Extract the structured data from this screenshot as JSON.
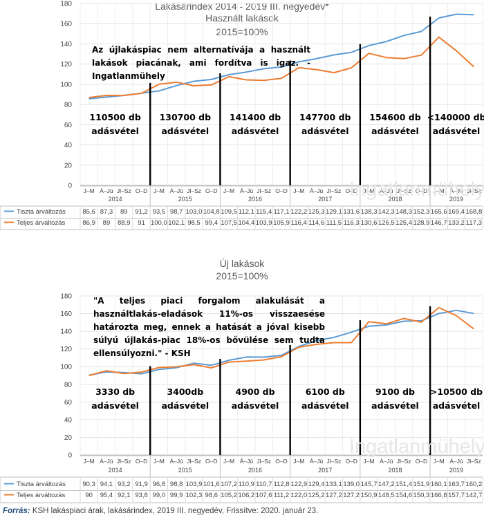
{
  "source_label": "Forrás:",
  "source_text": "KSH lakáspiaci árak, lakásárindex, 2019 III. negyedév, Frissítve: 2020. január 23.",
  "watermark": "Ingatlanmühely",
  "colors": {
    "tiszta": "#5b9bd5",
    "teljes": "#ed7d31"
  },
  "chart_data": [
    {
      "type": "line",
      "title": "Lakásárindex 2014 - 2019 III. negyedév*",
      "subtitle": "Használt lakások",
      "subtitle2": "2015=100%",
      "annotation": "Az újlakáspiac nem alternatívája a használt lakások piacának, ami fordítva is igaz. - Ingatlanmühely",
      "ylim": [
        0,
        180
      ],
      "yticks": [
        0,
        20,
        40,
        60,
        80,
        100,
        120,
        140,
        160,
        180
      ],
      "quarters": [
        "J–M",
        "Á–Jú",
        "Jl–Sz",
        "O–D",
        "J–M",
        "Á–Jú",
        "Jl–Sz",
        "O–D",
        "J–M",
        "Á–Jú",
        "Jl–Sz",
        "O–D",
        "J–M",
        "Á–Jú",
        "Jl–Sz",
        "O–D",
        "J–M",
        "Á–Jú",
        "Jl–Sz",
        "O–D",
        "J–M",
        "Á–Jú",
        "Jl–Sz"
      ],
      "years": [
        "2014",
        "2015",
        "2016",
        "2017",
        "2018",
        "2019"
      ],
      "series": [
        {
          "name": "Tiszta árváltozás",
          "values": [
            85.6,
            87.3,
            89,
            91.2,
            93.5,
            98.7,
            103,
            104.8,
            109.5,
            112.1,
            115.4,
            117.1,
            122.2,
            125.3,
            129.1,
            131.6,
            138.3,
            142.3,
            148.3,
            152.3,
            165.6,
            169.4,
            168.8
          ]
        },
        {
          "name": "Teljes árváltozás",
          "values": [
            86.9,
            89,
            88.9,
            91,
            100,
            102.1,
            98.5,
            99.4,
            107.5,
            104.4,
            103.9,
            105.9,
            116.4,
            114.6,
            111.5,
            116.3,
            130.6,
            126.5,
            125.4,
            128.9,
            146.7,
            133.2,
            117.3
          ]
        }
      ],
      "table_rows": [
        [
          "85,6",
          "87,3",
          "89",
          "91,2",
          "93,5",
          "98,7",
          "103,0",
          "104,8",
          "109,5",
          "112,1",
          "115,4",
          "117,1",
          "122,2",
          "125,3",
          "129,1",
          "131,6",
          "138,3",
          "142,3",
          "148,3",
          "152,3",
          "165,6",
          "169,4",
          "168,8"
        ],
        [
          "86,9",
          "89",
          "88,9",
          "91",
          "100,0",
          "102,1",
          "98,5",
          "99,4",
          "107,5",
          "104,4",
          "103,9",
          "105,9",
          "116,4",
          "114,6",
          "111,5",
          "116,3",
          "130,6",
          "126,5",
          "125,4",
          "128,9",
          "146,7",
          "133,2",
          "117,3"
        ]
      ],
      "boxes": [
        {
          "line1": "110500 db",
          "line2": "adásvétel"
        },
        {
          "line1": "130700 db",
          "line2": "adásvétel"
        },
        {
          "line1": "141400 db",
          "line2": "adásvétel"
        },
        {
          "line1": "147700 db",
          "line2": "adásvétel"
        },
        {
          "line1": "154600 db",
          "line2": "adásvétel"
        },
        {
          "line1": "<140000 db",
          "line2": "adásvétel"
        }
      ]
    },
    {
      "type": "line",
      "title": "Új lakások",
      "subtitle": "2015=100%",
      "annotation": "\"A teljes piaci forgalom alakulását a használtlakás-eladások 11%-os visszaesése határozta meg, ennek a hatását a jóval kisebb súlyú újlakás-piac 18%-os bővülése sem tudta ellensúlyozni.\" - KSH",
      "ylim": [
        0,
        180
      ],
      "yticks": [
        0,
        20,
        40,
        60,
        80,
        100,
        120,
        140,
        160,
        180
      ],
      "quarters": [
        "J–M",
        "Á–Jú",
        "Jl–Sz",
        "O–D",
        "J–M",
        "Á–Jú",
        "Jl–Sz",
        "O–D",
        "J–M",
        "Á–Jú",
        "Jl–Sz",
        "O–D",
        "J–M",
        "Á–Jú",
        "Jl–Sz",
        "O–D",
        "J–M",
        "Á–Jú",
        "Jl–Sz",
        "O–D",
        "J–M",
        "Á–Jú",
        "Jl–Sz"
      ],
      "years": [
        "2014",
        "2015",
        "2016",
        "2017",
        "2018",
        "2019"
      ],
      "series": [
        {
          "name": "Tiszta árváltozás",
          "values": [
            90.3,
            94.1,
            93.2,
            91.9,
            96.8,
            98.8,
            103.9,
            101.6,
            107.2,
            110.9,
            110.7,
            112.8,
            122.9,
            129.4,
            133.1,
            139.0,
            145.7,
            147.2,
            151.4,
            151.9,
            160.1,
            163.7,
            160.2
          ]
        },
        {
          "name": "Teljes árváltozás",
          "values": [
            90,
            95.4,
            92.1,
            93.8,
            99.0,
            99.9,
            102.3,
            98.6,
            105.2,
            106.2,
            107.6,
            111.2,
            122.0,
            125.2,
            127.2,
            127.2,
            150.9,
            148.5,
            154.6,
            150.3,
            166.8,
            157.7,
            142.7
          ]
        }
      ],
      "table_rows": [
        [
          "90,3",
          "94,1",
          "93,2",
          "91,9",
          "96,8",
          "98,8",
          "103,9",
          "101,6",
          "107,2",
          "110,9",
          "110,7",
          "112,8",
          "122,9",
          "129,4",
          "133,1",
          "139,0",
          "145,7",
          "147,2",
          "151,4",
          "151,9",
          "160,1",
          "163,7",
          "160,2"
        ],
        [
          "90",
          "95,4",
          "92,1",
          "93,8",
          "99,0",
          "99,9",
          "102,3",
          "98,6",
          "105,2",
          "106,2",
          "107,6",
          "111,2",
          "122,0",
          "125,2",
          "127,2",
          "127,2",
          "150,9",
          "148,5",
          "154,6",
          "150,3",
          "166,8",
          "157,7",
          "142,7"
        ]
      ],
      "boxes": [
        {
          "line1": "3330 db",
          "line2": "adásvétel"
        },
        {
          "line1": "3400db",
          "line2": "adásvétel"
        },
        {
          "line1": "4900 db",
          "line2": "adásvétel"
        },
        {
          "line1": "6100 db",
          "line2": "adásvétel"
        },
        {
          "line1": "9100 db",
          "line2": "adásvétel"
        },
        {
          "line1": ">10500 db",
          "line2": "adásvétel"
        }
      ]
    }
  ]
}
